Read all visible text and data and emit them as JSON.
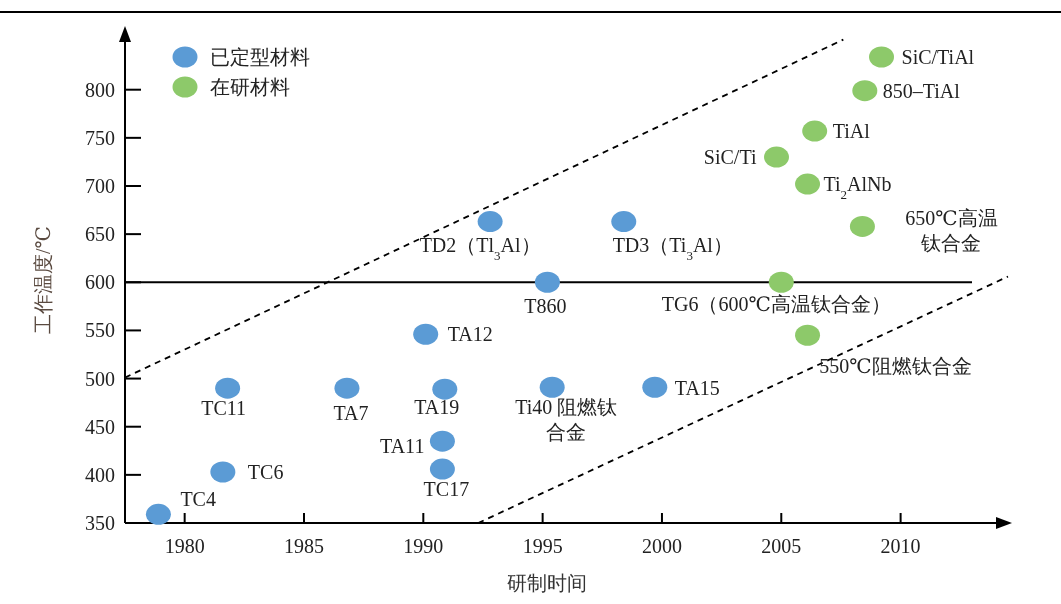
{
  "chart_data": {
    "type": "scatter",
    "xlabel": "研制时间",
    "ylabel": "工作温度/℃",
    "xlim": [
      1977.5,
      2014.5
    ],
    "ylim": [
      350,
      862
    ],
    "xticks": [
      1980,
      1985,
      1990,
      1995,
      2000,
      2005,
      2010
    ],
    "yticks": [
      350,
      400,
      450,
      500,
      550,
      600,
      650,
      700,
      750,
      800
    ],
    "legend": "top left",
    "marker": "circle",
    "grid": false,
    "series": [
      {
        "name": "已定型材料",
        "color": "#5b9bd5",
        "x": [
          1978.9,
          1981.8,
          1981.6,
          1986.8,
          1990.1,
          1990.9,
          1990.8,
          1990.8,
          1992.8,
          1998.4,
          1995.2,
          1995.4,
          1999.7
        ],
        "values": [
          359,
          490,
          403,
          490,
          546,
          489,
          435,
          406,
          663,
          663,
          600,
          491,
          491
        ]
      },
      {
        "name": "在研材料",
        "color": "#8dc96a",
        "x": [
          2009.2,
          2008.5,
          2006.4,
          2004.8,
          2006.1,
          2008.4,
          2005.0,
          2006.1
        ],
        "values": [
          834,
          799,
          757,
          730,
          702,
          658,
          600,
          545
        ]
      },
      {
        "type": "line",
        "color": "#000000",
        "line_style": "dashed",
        "marker": "none",
        "x": [
          1977.5,
          2007.6
        ],
        "values": [
          501,
          852
        ]
      },
      {
        "type": "line",
        "color": "#000000",
        "line_style": "dashed",
        "marker": "none",
        "x": [
          1992.3,
          2014.5
        ],
        "values": [
          350,
          606
        ]
      }
    ],
    "ref_lines": [
      {
        "axis": "y",
        "value": 600,
        "color": "#000000",
        "line_style": "solid"
      }
    ],
    "annotations": [
      {
        "text": "TC4",
        "x": 1978.9,
        "y": 359
      },
      {
        "text": "TC11",
        "x": 1981.8,
        "y": 490
      },
      {
        "text": "TC6",
        "x": 1981.6,
        "y": 403
      },
      {
        "text": "TA7",
        "x": 1986.8,
        "y": 490
      },
      {
        "text": "TA12",
        "x": 1990.1,
        "y": 546
      },
      {
        "text": "TA19",
        "x": 1990.9,
        "y": 489
      },
      {
        "text": "TA11",
        "x": 1990.8,
        "y": 435
      },
      {
        "text": "TC17",
        "x": 1990.8,
        "y": 406
      },
      {
        "text": "TD2（Tl$_{3}$Al）",
        "x": 1992.8,
        "y": 663
      },
      {
        "text": "TD3（Ti$_{3}$Al）",
        "x": 1998.4,
        "y": 663
      },
      {
        "text": "T860",
        "x": 1995.2,
        "y": 600
      },
      {
        "text": "Ti40 阻燃钛合金",
        "x": 1995.4,
        "y": 491
      },
      {
        "text": "TA15",
        "x": 1999.7,
        "y": 491
      },
      {
        "text": "SiC/TiAl",
        "x": 2009.2,
        "y": 834
      },
      {
        "text": "850–TiAl",
        "x": 2008.5,
        "y": 799
      },
      {
        "text": "TiAl",
        "x": 2006.4,
        "y": 757
      },
      {
        "text": "SiC/Ti",
        "x": 2004.8,
        "y": 730
      },
      {
        "text": "Ti$_{2}$AlNb",
        "x": 2006.1,
        "y": 702
      },
      {
        "text": "650℃高温钛合金",
        "x": 2008.4,
        "y": 658
      },
      {
        "text": "TG6（600℃高温钛合金）",
        "x": 2005.0,
        "y": 600
      },
      {
        "text": "550℃阻燃钛合金",
        "x": 2006.1,
        "y": 545
      }
    ]
  }
}
